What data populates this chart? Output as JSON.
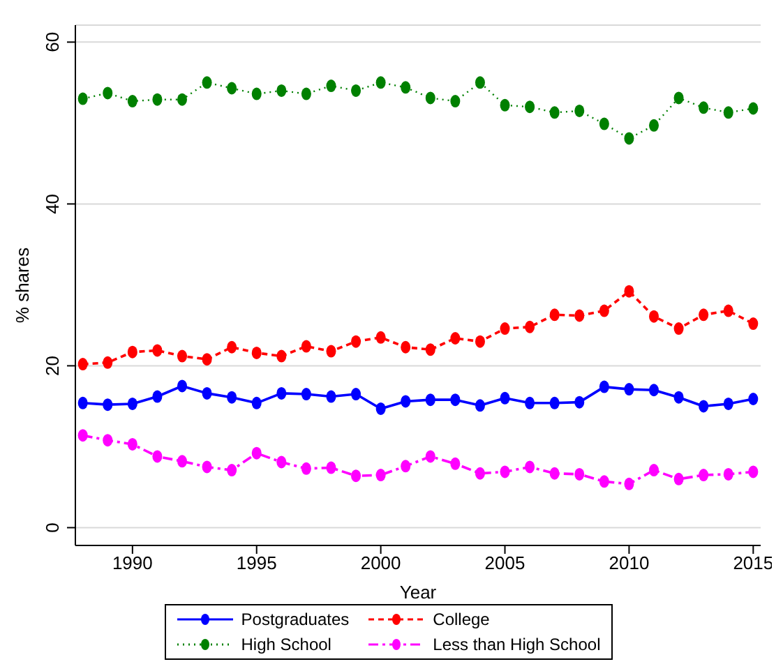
{
  "chart_data": {
    "type": "line",
    "xlabel": "Year",
    "ylabel": "% shares",
    "x": [
      1988,
      1989,
      1990,
      1991,
      1992,
      1993,
      1994,
      1995,
      1996,
      1997,
      1998,
      1999,
      2000,
      2001,
      2002,
      2003,
      2004,
      2005,
      2006,
      2007,
      2008,
      2009,
      2010,
      2011,
      2012,
      2013,
      2014,
      2015
    ],
    "xlim": [
      1987.7,
      2015.3
    ],
    "xticks": [
      1990,
      1995,
      2000,
      2005,
      2010,
      2015
    ],
    "ylim": [
      -2.2,
      62.1
    ],
    "yticks": [
      0,
      20,
      40,
      60
    ],
    "grid": "y",
    "legend": "bottom",
    "marker": "circle",
    "series": [
      {
        "name": "Postgraduates",
        "color": "#0000ff",
        "line_style": "solid",
        "values": [
          15.4,
          15.2,
          15.3,
          16.2,
          17.5,
          16.6,
          16.1,
          15.4,
          16.6,
          16.5,
          16.2,
          16.5,
          14.7,
          15.6,
          15.8,
          15.8,
          15.1,
          16,
          15.4,
          15.4,
          15.5,
          17.4,
          17.1,
          17,
          16.1,
          15,
          15.3,
          15.9
        ]
      },
      {
        "name": "College",
        "color": "#ff0000",
        "line_style": "dashed",
        "values": [
          20.2,
          20.4,
          21.7,
          21.9,
          21.2,
          20.8,
          22.3,
          21.6,
          21.2,
          22.4,
          21.8,
          23,
          23.5,
          22.3,
          22,
          23.4,
          23,
          24.6,
          24.8,
          26.3,
          26.2,
          26.8,
          29.2,
          26.1,
          24.6,
          26.3,
          26.8,
          25.2
        ]
      },
      {
        "name": "High School",
        "color": "#008000",
        "line_style": "dotted",
        "values": [
          53,
          53.7,
          52.7,
          52.9,
          52.9,
          55,
          54.3,
          53.6,
          54,
          53.6,
          54.6,
          54,
          55,
          54.4,
          53.1,
          52.7,
          55,
          52.2,
          52,
          51.3,
          51.5,
          49.9,
          48.1,
          49.7,
          53.1,
          51.9,
          51.3,
          51.8
        ]
      },
      {
        "name": "Less than High School",
        "color": "#ff00ff",
        "line_style": "dashdot",
        "values": [
          11.4,
          10.8,
          10.3,
          8.8,
          8.2,
          7.5,
          7.1,
          9.2,
          8.1,
          7.3,
          7.4,
          6.4,
          6.5,
          7.6,
          8.8,
          7.9,
          6.7,
          6.9,
          7.5,
          6.7,
          6.6,
          5.7,
          5.4,
          7.1,
          6,
          6.5,
          6.6,
          6.9
        ]
      }
    ]
  }
}
